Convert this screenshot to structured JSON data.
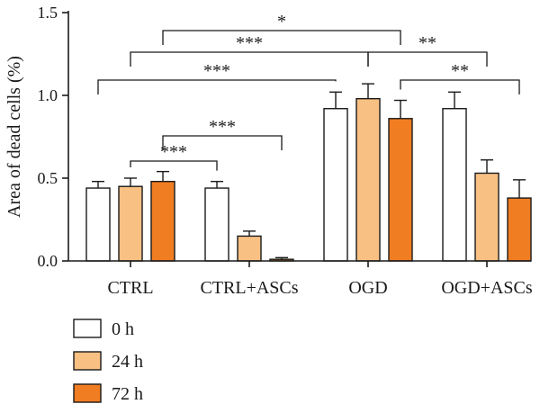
{
  "chart_data": {
    "type": "bar",
    "title": "",
    "xlabel": "",
    "ylabel": "Area of dead cells (%)",
    "ylim": [
      0,
      1.5
    ],
    "yticks": [
      "0.0",
      "0.5",
      "1.0",
      "1.5"
    ],
    "categories": [
      "CTRL",
      "CTRL+ASCs",
      "OGD",
      "OGD+ASCs"
    ],
    "series": [
      {
        "name": "0 h",
        "color": "#ffffff",
        "values": [
          0.44,
          0.44,
          0.92,
          0.92
        ],
        "errors": [
          0.04,
          0.04,
          0.1,
          0.1
        ]
      },
      {
        "name": "24 h",
        "color": "#f8c083",
        "values": [
          0.45,
          0.15,
          0.98,
          0.53
        ],
        "errors": [
          0.05,
          0.03,
          0.09,
          0.08
        ]
      },
      {
        "name": "72 h",
        "color": "#f07d22",
        "values": [
          0.48,
          0.01,
          0.86,
          0.38
        ],
        "errors": [
          0.06,
          0.01,
          0.11,
          0.11
        ]
      }
    ],
    "significance": [
      {
        "from": "CTRL|24 h",
        "to": "CTRL+ASCs|0 h",
        "label": "***"
      },
      {
        "from": "CTRL|72 h",
        "to": "CTRL+ASCs|72 h",
        "label": "***"
      },
      {
        "from": "CTRL|0 h",
        "to": "OGD|0 h",
        "label": "***"
      },
      {
        "from": "CTRL|24 h",
        "to": "OGD|24 h",
        "label": "***"
      },
      {
        "from": "OGD|24 h",
        "to": "OGD+ASCs|24 h",
        "label": "**"
      },
      {
        "from": "OGD|72 h",
        "to": "OGD+ASCs|72 h",
        "label": "**"
      },
      {
        "from": "CTRL|72 h",
        "to": "OGD|72 h",
        "label": "*"
      }
    ],
    "legend_position": "bottom-left",
    "grid": false
  }
}
